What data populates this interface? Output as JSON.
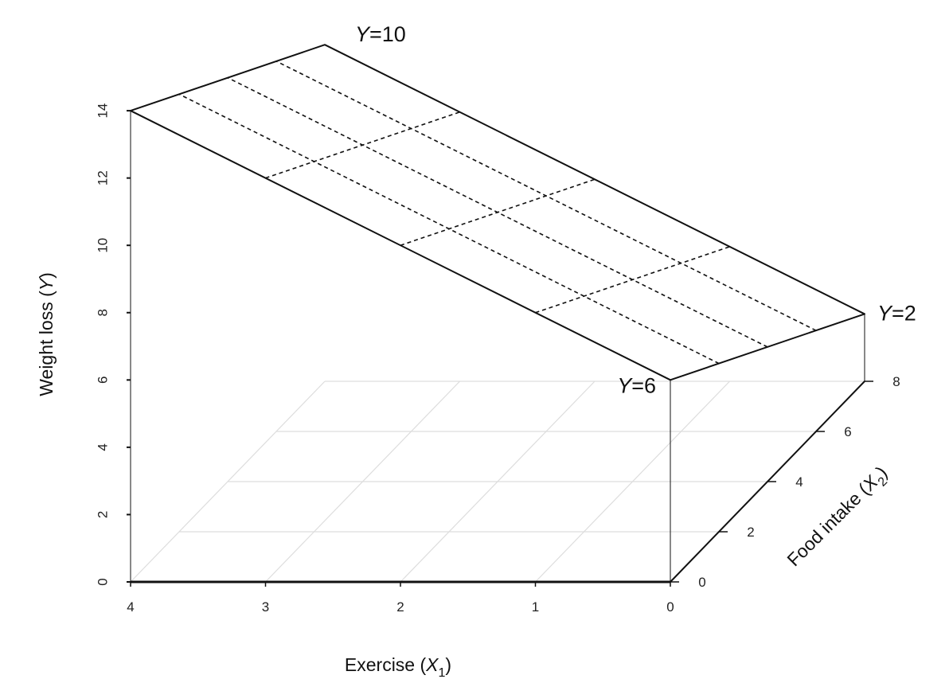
{
  "chart_data": {
    "type": "3d-surface",
    "surface_kind": "regression-plane",
    "x1_axis": {
      "label": "Exercise (X1)",
      "label_parts": {
        "base": "Exercise (",
        "var": "X",
        "sub": "1",
        "close": ")"
      },
      "ticks": [
        0,
        1,
        2,
        3,
        4
      ],
      "tick_labels": [
        "0",
        "1",
        "2",
        "3",
        "4"
      ],
      "range": [
        0,
        4
      ]
    },
    "x2_axis": {
      "label": "Food intake (X2)",
      "label_parts": {
        "base": "Food intake (",
        "var": "X",
        "sub": "2",
        "close": ")"
      },
      "ticks": [
        0,
        2,
        4,
        6,
        8
      ],
      "tick_labels": [
        "0",
        "2",
        "4",
        "6",
        "8"
      ],
      "range": [
        0,
        8
      ]
    },
    "y_axis": {
      "label": "Weight loss (Y)",
      "label_parts": {
        "base": "Weight loss (",
        "var": "Y",
        "close": ")"
      },
      "ticks": [
        0,
        2,
        4,
        6,
        8,
        10,
        12,
        14
      ],
      "tick_labels": [
        "0",
        "2",
        "4",
        "6",
        "8",
        "10",
        "12",
        "14"
      ],
      "range": [
        0,
        14
      ]
    },
    "plane_equation": {
      "intercept": 6,
      "b_x1": 2,
      "b_x2": -0.5
    },
    "plane_corners": [
      {
        "x1": 0,
        "x2": 0,
        "y": 6
      },
      {
        "x1": 4,
        "x2": 0,
        "y": 14
      },
      {
        "x1": 4,
        "x2": 8,
        "y": 10
      },
      {
        "x1": 0,
        "x2": 8,
        "y": 2
      }
    ],
    "corner_labels": [
      {
        "var": "Y",
        "text": "=6",
        "x1": 0,
        "x2": 0
      },
      {
        "var": "Y",
        "text": "=10",
        "x1": 4,
        "x2": 8
      },
      {
        "var": "Y",
        "text": "=2",
        "x1": 0,
        "x2": 8
      }
    ],
    "plane_gridlines": {
      "x1_values": [
        1,
        2,
        3
      ],
      "x2_values": [
        2,
        4,
        6
      ],
      "style": "dashed"
    },
    "floor_grid": {
      "x1_values": [
        1,
        2,
        3,
        4
      ],
      "x2_values": [
        2,
        4,
        6,
        8
      ],
      "color": "#dddddd"
    },
    "colors": {
      "plane_fill": "#ffffff",
      "line": "#111111",
      "floor_grid": "#dddddd"
    }
  }
}
